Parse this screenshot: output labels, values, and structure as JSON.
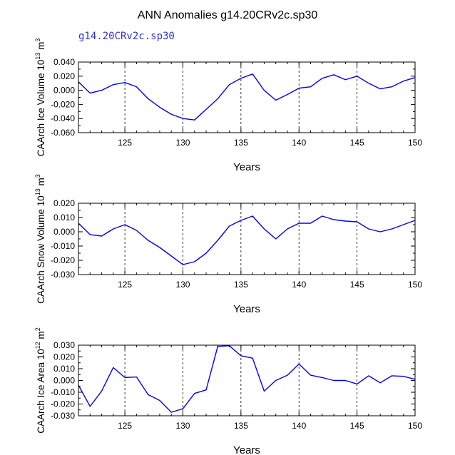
{
  "title": "ANN Anomalies g14.20CRv2c.sp30",
  "legend_label": "g14.20CRv2c.sp30",
  "colors": {
    "series": "#0000ff",
    "legend": "#3333cc",
    "axis": "#000000"
  },
  "chart_data": [
    {
      "type": "line",
      "name": "ice-volume",
      "ylabel_main": "CAArch Ice Volume 10",
      "ylabel_sup": "13",
      "ylabel_unit": " m",
      "ylabel_unit_sup": "3",
      "xlabel": "Years",
      "xlim": [
        121,
        150
      ],
      "ylim": [
        -0.06,
        0.04
      ],
      "yticks": [
        -0.06,
        -0.04,
        -0.02,
        0.0,
        0.02,
        0.04
      ],
      "yticklabels": [
        "-0.060",
        "-0.040",
        "-0.020",
        "0.000",
        "0.020",
        "0.040"
      ],
      "xticks": [
        125,
        130,
        135,
        140,
        145,
        150
      ],
      "xticklabels": [
        "125",
        "130",
        "135",
        "140",
        "145",
        "150"
      ],
      "x": [
        121,
        122,
        123,
        124,
        125,
        126,
        127,
        128,
        129,
        130,
        131,
        132,
        133,
        134,
        135,
        136,
        137,
        138,
        139,
        140,
        141,
        142,
        143,
        144,
        145,
        146,
        147,
        148,
        149,
        150
      ],
      "values": [
        0.012,
        -0.004,
        0.0,
        0.008,
        0.011,
        0.005,
        -0.012,
        -0.024,
        -0.034,
        -0.04,
        -0.042,
        -0.027,
        -0.012,
        0.008,
        0.017,
        0.023,
        0.0,
        -0.014,
        -0.006,
        0.003,
        0.005,
        0.017,
        0.022,
        0.015,
        0.02,
        0.01,
        0.002,
        0.005,
        0.013,
        0.018
      ]
    },
    {
      "type": "line",
      "name": "snow-volume",
      "ylabel_main": "CAArch Snow Volume 10",
      "ylabel_sup": "13",
      "ylabel_unit": " m",
      "ylabel_unit_sup": "3",
      "xlabel": "Years",
      "xlim": [
        121,
        150
      ],
      "ylim": [
        -0.03,
        0.02
      ],
      "yticks": [
        -0.03,
        -0.02,
        -0.01,
        0.0,
        0.01,
        0.02
      ],
      "yticklabels": [
        "-0.030",
        "-0.020",
        "-0.010",
        "0.000",
        "0.010",
        "0.020"
      ],
      "xticks": [
        125,
        130,
        135,
        140,
        145,
        150
      ],
      "xticklabels": [
        "125",
        "130",
        "135",
        "140",
        "145",
        "150"
      ],
      "x": [
        121,
        122,
        123,
        124,
        125,
        126,
        127,
        128,
        129,
        130,
        131,
        132,
        133,
        134,
        135,
        136,
        137,
        138,
        139,
        140,
        141,
        142,
        143,
        144,
        145,
        146,
        147,
        148,
        149,
        150
      ],
      "values": [
        0.006,
        -0.002,
        -0.003,
        0.002,
        0.005,
        0.001,
        -0.006,
        -0.011,
        -0.017,
        -0.023,
        -0.021,
        -0.015,
        -0.006,
        0.004,
        0.008,
        0.011,
        0.002,
        -0.005,
        0.002,
        0.006,
        0.006,
        0.011,
        0.0085,
        0.0075,
        0.007,
        0.002,
        0.0,
        0.002,
        0.005,
        0.008
      ]
    },
    {
      "type": "line",
      "name": "ice-area",
      "ylabel_main": "CAArch Ice Area 10",
      "ylabel_sup": "12",
      "ylabel_unit": " m",
      "ylabel_unit_sup": "2",
      "xlabel": "Years",
      "xlim": [
        121,
        150
      ],
      "ylim": [
        -0.03,
        0.03
      ],
      "yticks": [
        -0.03,
        -0.02,
        -0.01,
        0.0,
        0.01,
        0.02,
        0.03
      ],
      "yticklabels": [
        "-0.030",
        "-0.020",
        "-0.010",
        "0.000",
        "0.010",
        "0.020",
        "0.030"
      ],
      "xticks": [
        125,
        130,
        135,
        140,
        145,
        150
      ],
      "xticklabels": [
        "125",
        "130",
        "135",
        "140",
        "145",
        "150"
      ],
      "x": [
        121,
        122,
        123,
        124,
        125,
        126,
        127,
        128,
        129,
        130,
        131,
        132,
        133,
        134,
        135,
        136,
        137,
        138,
        139,
        140,
        141,
        142,
        143,
        144,
        145,
        146,
        147,
        148,
        149,
        150
      ],
      "values": [
        -0.004,
        -0.022,
        -0.009,
        0.011,
        0.0025,
        0.003,
        -0.012,
        -0.017,
        -0.027,
        -0.024,
        -0.011,
        -0.008,
        0.029,
        0.0295,
        0.021,
        0.019,
        -0.009,
        0.0,
        0.0045,
        0.014,
        0.0045,
        0.0025,
        0.0,
        0.0,
        -0.003,
        0.004,
        -0.002,
        0.004,
        0.0035,
        0.001
      ]
    }
  ]
}
